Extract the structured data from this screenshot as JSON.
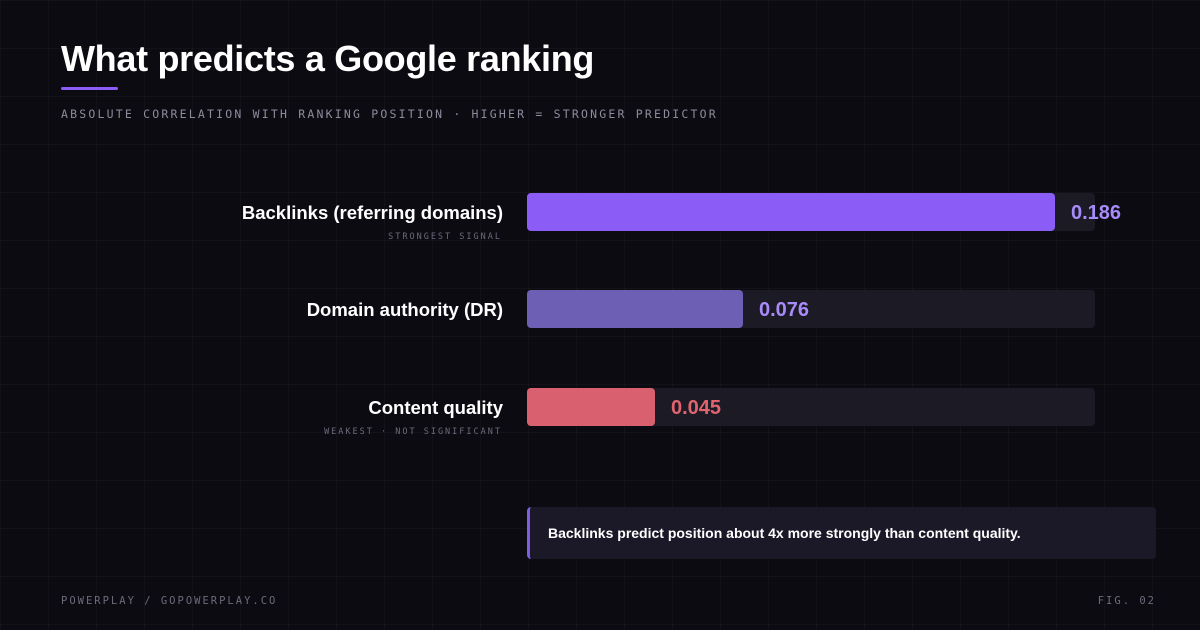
{
  "header": {
    "title": "What predicts a Google ranking",
    "subtitle": "ABSOLUTE CORRELATION WITH RANKING POSITION · HIGHER = STRONGER PREDICTOR"
  },
  "chart_data": {
    "type": "bar",
    "orientation": "horizontal",
    "title": "What predicts a Google ranking",
    "subtitle": "ABSOLUTE CORRELATION WITH RANKING POSITION · HIGHER = STRONGER PREDICTOR",
    "categories": [
      "Backlinks (referring domains)",
      "Domain authority (DR)",
      "Content quality"
    ],
    "values": [
      0.186,
      0.076,
      0.045
    ],
    "value_labels": [
      "0.186",
      "0.076",
      "0.045"
    ],
    "annotations": [
      "STRONGEST SIGNAL",
      "",
      "WEAKEST · NOT SIGNIFICANT"
    ],
    "bar_colors": [
      "#8b5cf6",
      "#6d5fb3",
      "#d9616f"
    ],
    "label_colors": [
      "#a78bfa",
      "#a78bfa",
      "#e0646f"
    ],
    "track_color": "#1b1a25",
    "xlim": [
      0,
      0.2
    ],
    "grid": false,
    "legend": "none"
  },
  "callout": {
    "text": "Backlinks predict position about 4x more strongly than content quality."
  },
  "footer": {
    "left": "POWERPLAY / GOPOWERPLAY.CO",
    "right": "FIG. 02"
  }
}
